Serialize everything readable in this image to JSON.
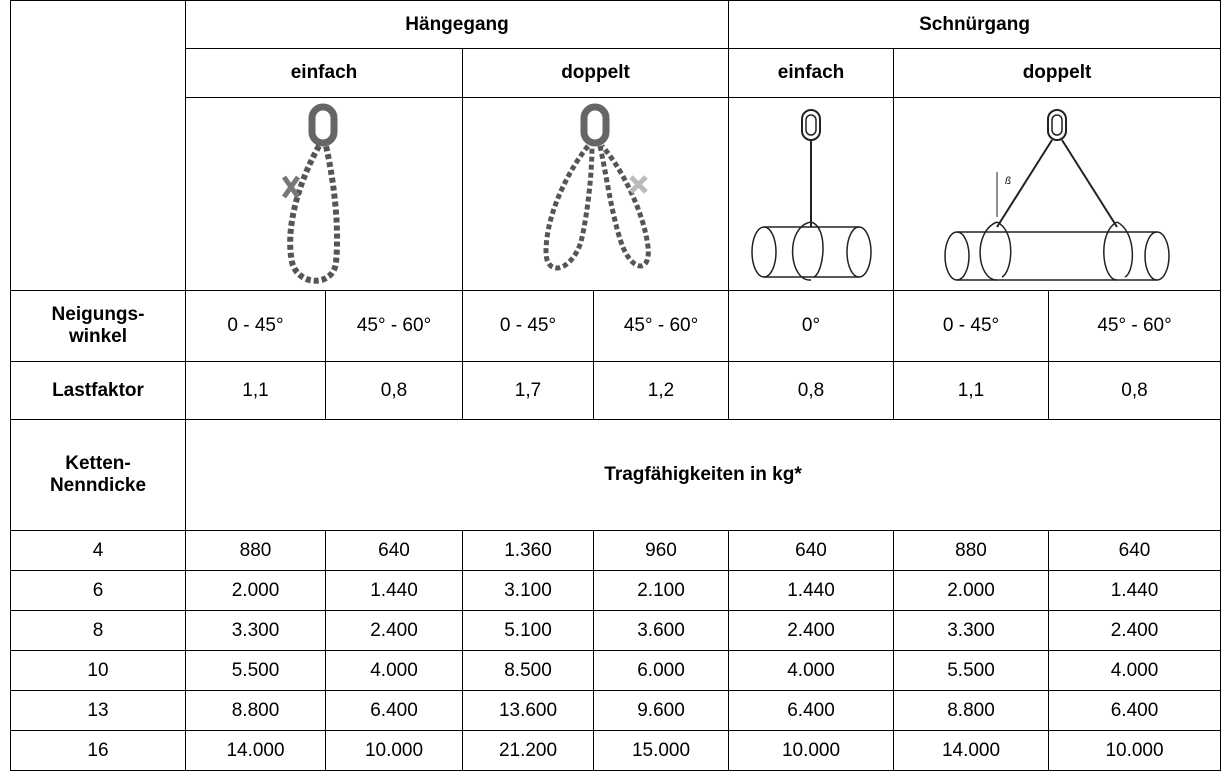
{
  "header": {
    "groups": [
      "Hängegang",
      "Schnürgang"
    ],
    "subgroups": [
      "einfach",
      "doppelt",
      "einfach",
      "doppelt"
    ]
  },
  "angle": {
    "label": [
      "Neigungs-",
      "winkel"
    ],
    "values": [
      "0 - 45°",
      "45° - 60°",
      "0 - 45°",
      "45° - 60°",
      "0°",
      "0 - 45°",
      "45° - 60°"
    ]
  },
  "load_factor": {
    "label": "Lastfaktor",
    "values": [
      "1,1",
      "0,8",
      "1,7",
      "1,2",
      "0,8",
      "1,1",
      "0,8"
    ]
  },
  "capacity": {
    "label": [
      "Ketten-",
      "Nenndicke"
    ],
    "title": "Tragfähigkeiten in kg*"
  },
  "diagram_label": "ß",
  "table": {
    "rows": [
      [
        "4",
        "880",
        "640",
        "1.360",
        "960",
        "640",
        "880",
        "640"
      ],
      [
        "6",
        "2.000",
        "1.440",
        "3.100",
        "2.100",
        "1.440",
        "2.000",
        "1.440"
      ],
      [
        "8",
        "3.300",
        "2.400",
        "5.100",
        "3.600",
        "2.400",
        "3.300",
        "2.400"
      ],
      [
        "10",
        "5.500",
        "4.000",
        "8.500",
        "6.000",
        "4.000",
        "5.500",
        "4.000"
      ],
      [
        "13",
        "8.800",
        "6.400",
        "13.600",
        "9.600",
        "6.400",
        "8.800",
        "6.400"
      ],
      [
        "16",
        "14.000",
        "10.000",
        "21.200",
        "15.000",
        "10.000",
        "14.000",
        "10.000"
      ]
    ]
  }
}
